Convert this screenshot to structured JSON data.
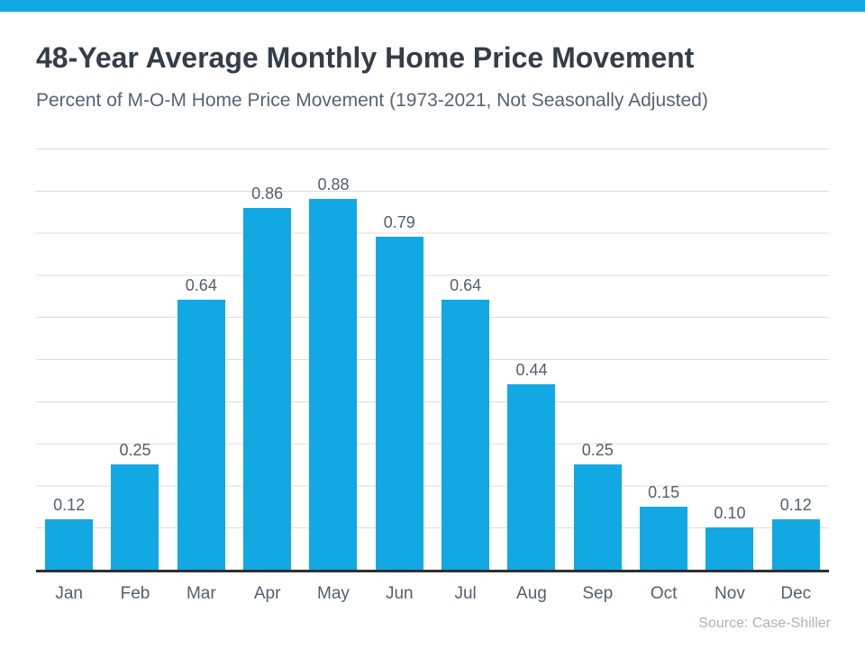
{
  "accent_color": "#12a8e4",
  "header": {
    "title": "48-Year Average Monthly Home Price Movement",
    "subtitle": "Percent of M-O-M Home Price Movement (1973-2021, Not Seasonally Adjusted)"
  },
  "chart_data": {
    "type": "bar",
    "title": "48-Year Average Monthly Home Price Movement",
    "subtitle": "Percent of M-O-M Home Price Movement (1973-2021, Not Seasonally Adjusted)",
    "categories": [
      "Jan",
      "Feb",
      "Mar",
      "Apr",
      "May",
      "Jun",
      "Jul",
      "Aug",
      "Sep",
      "Oct",
      "Nov",
      "Dec"
    ],
    "values": [
      0.12,
      0.25,
      0.64,
      0.86,
      0.88,
      0.79,
      0.64,
      0.44,
      0.25,
      0.15,
      0.1,
      0.12
    ],
    "data_labels": [
      "0.12",
      "0.25",
      "0.64",
      "0.86",
      "0.88",
      "0.79",
      "0.64",
      "0.44",
      "0.25",
      "0.15",
      "0.10",
      "0.12"
    ],
    "xlabel": "",
    "ylabel": "",
    "ylim": [
      0,
      1.0
    ],
    "grid": true,
    "gridline_step": 0.1,
    "legend": false,
    "bar_color": "#12a8e4",
    "axis_color": "#2f2f2f",
    "grid_color": "#dcdcdc"
  },
  "footer": {
    "source": "Source: Case-Shiller"
  }
}
